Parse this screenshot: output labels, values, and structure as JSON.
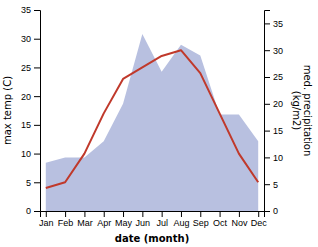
{
  "chart_data": {
    "type": "line",
    "categories": [
      "Jan",
      "Feb",
      "Mar",
      "Apr",
      "May",
      "Jun",
      "Jul",
      "Aug",
      "Sep",
      "Oct",
      "Nov",
      "Dec"
    ],
    "series": [
      {
        "type": "area",
        "axis": "y2",
        "color": "#b8c0e0",
        "values": [
          9,
          10,
          10,
          13,
          20,
          33,
          26,
          31,
          29,
          18,
          18,
          13
        ]
      },
      {
        "type": "line",
        "color": "#c0392b",
        "values": [
          4,
          5,
          10,
          17,
          23,
          25,
          27,
          28,
          24,
          17,
          10,
          5
        ]
      }
    ],
    "x_label": "date (month)",
    "y_label": "max temp (C)",
    "y2_label": "med. precipitation\n(kg/m2)",
    "ylim": [
      0,
      35
    ],
    "yticks": [
      0,
      5,
      10,
      15,
      20,
      25,
      30,
      35
    ],
    "y2lim": [
      0,
      37.5
    ],
    "y2ticks": [
      0,
      5,
      10,
      15,
      20,
      25,
      30,
      35
    ],
    "grid": false
  }
}
